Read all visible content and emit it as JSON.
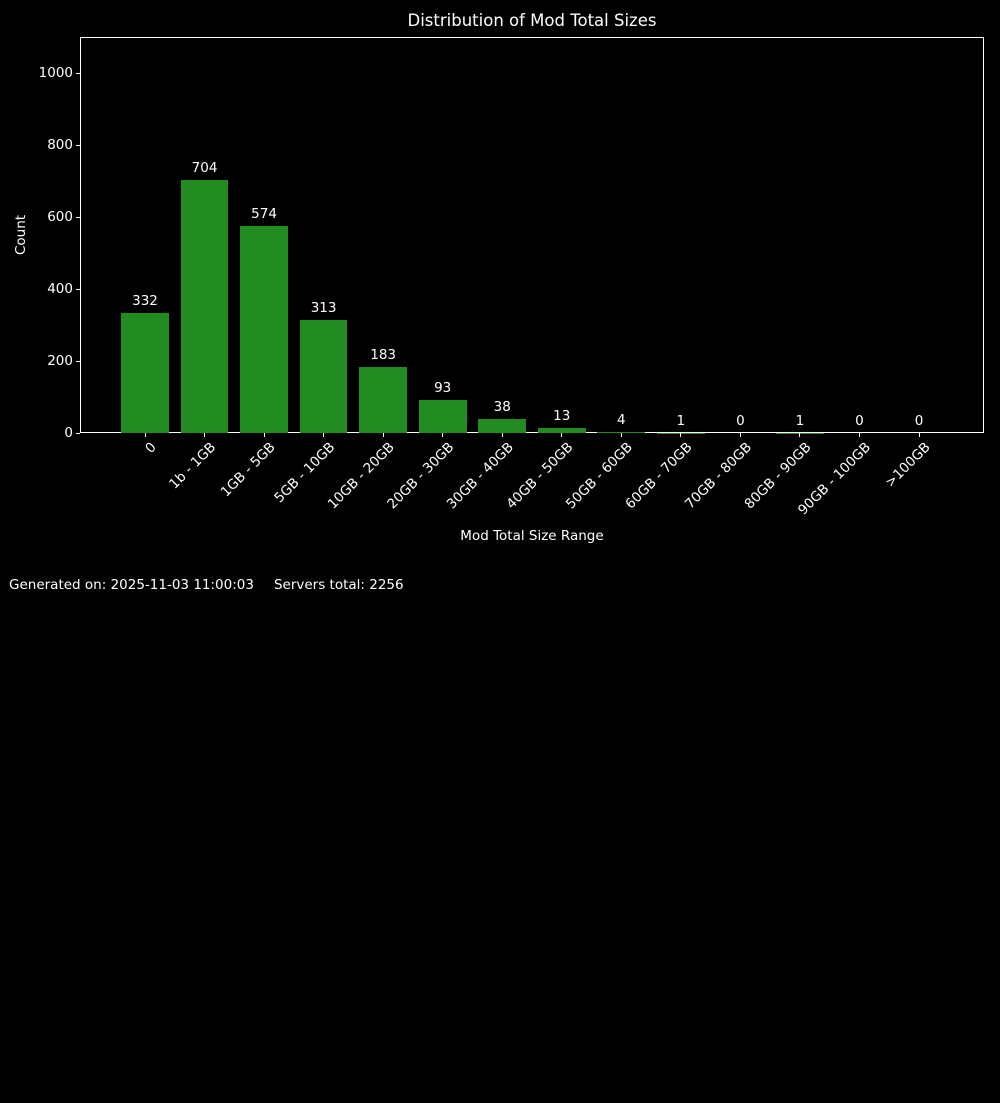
{
  "page": {
    "background_color": "#000000",
    "text_color": "#ffffff"
  },
  "chart_data": {
    "type": "bar",
    "title": "Distribution of Mod Total Sizes",
    "xlabel": "Mod Total Size Range",
    "ylabel": "Count",
    "categories": [
      "0",
      "1b - 1GB",
      "1GB - 5GB",
      "5GB - 10GB",
      "10GB - 20GB",
      "20GB - 30GB",
      "30GB - 40GB",
      "40GB - 50GB",
      "50GB - 60GB",
      "60GB - 70GB",
      "70GB - 80GB",
      "80GB - 90GB",
      "90GB - 100GB",
      ">100GB"
    ],
    "values": [
      332,
      704,
      574,
      313,
      183,
      93,
      38,
      13,
      4,
      1,
      0,
      1,
      0,
      0
    ],
    "bar_labels": [
      332,
      704,
      574,
      313,
      183,
      93,
      38,
      13,
      4,
      1,
      0,
      1,
      0,
      0
    ],
    "yticks": [
      0,
      200,
      400,
      600,
      800,
      1000
    ],
    "ylim": [
      0,
      1100
    ],
    "xtick_rotation": 45,
    "grid": false,
    "legend": null,
    "bar_color": "#228B22",
    "background_color": "#000000",
    "text_color": "#ffffff",
    "spine_color": "#ffffff"
  },
  "footer": {
    "generated_on": "Generated on: 2025-11-03 11:00:03",
    "servers_total": "Servers total: 2256"
  }
}
